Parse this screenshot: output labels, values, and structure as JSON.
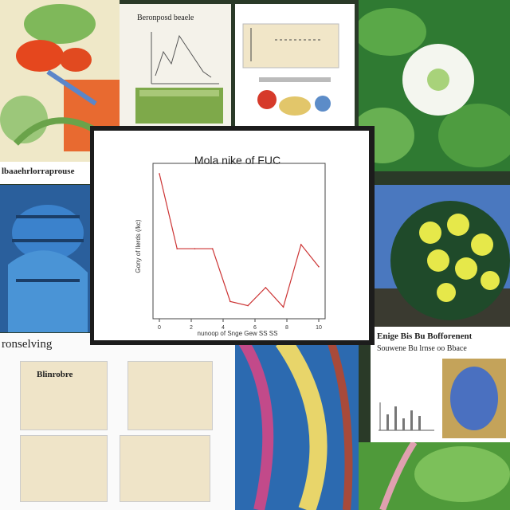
{
  "main_chart": {
    "title": "Mola nike of FUC",
    "xlabel": "nunoop of Snge Gew SS SS",
    "ylabel": "Gony of llerds (/kc)",
    "series_color": "#cc3333"
  },
  "captions": {
    "left_strip": "lbaaehrlorraprouse",
    "left_section": "ronselving",
    "right_title_1": "Enige Bis Bu Bofforenent",
    "right_title_2": "Souwene Bu lrnse oo Bbace",
    "panel_top_title": "Beronposd beaele",
    "panel_label_1": "Blinrobre"
  },
  "chart_data": {
    "type": "line",
    "title": "Mola nike of FUC",
    "xlabel": "nunoop of Snge Gew SS SS",
    "ylabel": "Gony of llerds (/kc)",
    "x": [
      0,
      1,
      2,
      3,
      4,
      5,
      6,
      7,
      8,
      9
    ],
    "values": [
      9.6,
      4.2,
      4.2,
      4.2,
      0.4,
      0.1,
      1.4,
      0.0,
      4.5,
      2.9
    ],
    "xticks": [
      "0",
      "2",
      "4",
      "6",
      "8",
      "10"
    ],
    "ylim": [
      -0.5,
      10
    ],
    "grid": false
  }
}
